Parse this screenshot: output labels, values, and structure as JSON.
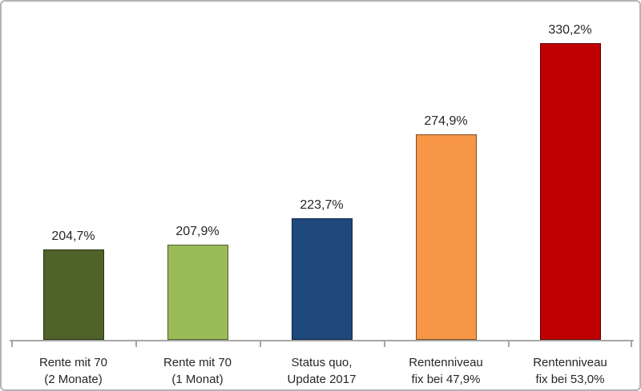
{
  "chart_data": {
    "type": "bar",
    "categories": [
      "Rente mit 70\n(2 Monate)",
      "Rente mit 70\n(1 Monat)",
      "Status quo,\nUpdate 2017",
      "Rentenniveau\nfix bei 47,9%",
      "Rentenniveau\nfix bei 53,0%"
    ],
    "values": [
      204.7,
      207.9,
      223.7,
      274.9,
      330.2
    ],
    "value_labels": [
      "204,7%",
      "207,9%",
      "223,7%",
      "274,9%",
      "330,2%"
    ],
    "bar_colors": [
      "#4F6228",
      "#9BBB59",
      "#1F497D",
      "#F79646",
      "#C00000"
    ],
    "title": "",
    "xlabel": "",
    "ylabel": "",
    "ylim": [
      150,
      340
    ],
    "grid": false,
    "legend": false,
    "axis_color": "#A6A6A6",
    "text_color": "#262626"
  }
}
